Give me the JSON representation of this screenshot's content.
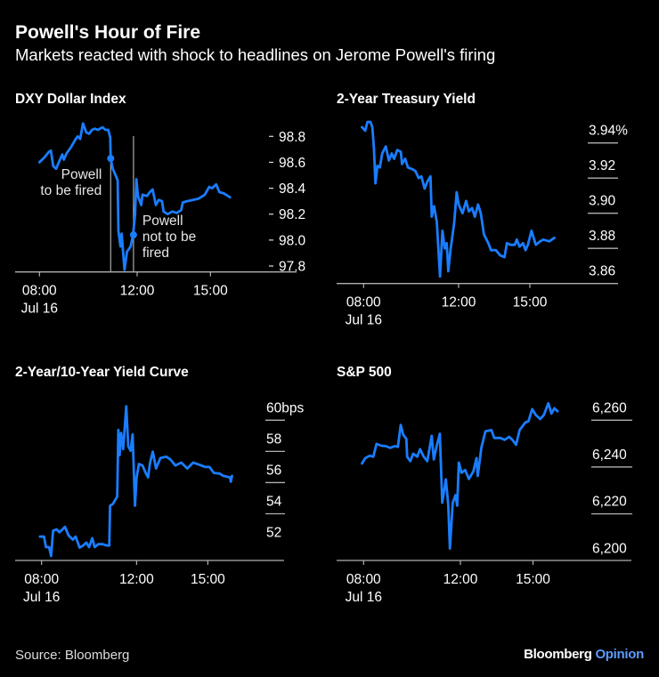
{
  "header": {
    "title": "Powell's Hour of Fire",
    "subtitle": "Markets reacted with shock to headlines on Jerome Powell's firing"
  },
  "footer": {
    "source": "Source: Bloomberg",
    "brand": "Bloomberg",
    "brand_suffix": "Opinion"
  },
  "colors": {
    "background": "#000000",
    "line": "#1a7dff",
    "text": "#ffffff",
    "grid": "#b0b0b0"
  },
  "chart_data": [
    {
      "type": "line",
      "title": "DXY Dollar Index",
      "ylim": [
        97.75,
        98.95
      ],
      "x_ticks": [
        "08:00",
        "12:00",
        "15:00"
      ],
      "x_sublabel": "Jul 16",
      "y_ticks": [
        {
          "value": 98.8,
          "label": "98.8"
        },
        {
          "value": 98.6,
          "label": "98.6"
        },
        {
          "value": 98.4,
          "label": "98.4"
        },
        {
          "value": 98.2,
          "label": "98.2"
        },
        {
          "value": 98.0,
          "label": "98.0"
        },
        {
          "value": 97.8,
          "label": "97.8"
        }
      ],
      "annotations": [
        {
          "x": "10:55",
          "y": 98.63,
          "lines": [
            "Powell",
            "to be fired"
          ]
        },
        {
          "x": "11:51",
          "y": 98.04,
          "lines": [
            "Powell",
            "not to be",
            "fired"
          ]
        }
      ],
      "points": [
        [
          "08:00",
          98.6
        ],
        [
          "08:13",
          98.64
        ],
        [
          "08:23",
          98.68
        ],
        [
          "08:28",
          98.69
        ],
        [
          "08:34",
          98.57
        ],
        [
          "08:41",
          98.55
        ],
        [
          "08:49",
          98.61
        ],
        [
          "08:56",
          98.66
        ],
        [
          "09:00",
          98.62
        ],
        [
          "09:07",
          98.67
        ],
        [
          "09:18",
          98.72
        ],
        [
          "09:29",
          98.78
        ],
        [
          "09:34",
          98.8
        ],
        [
          "09:40",
          98.78
        ],
        [
          "09:47",
          98.9
        ],
        [
          "09:55",
          98.83
        ],
        [
          "10:02",
          98.82
        ],
        [
          "10:09",
          98.85
        ],
        [
          "10:16",
          98.86
        ],
        [
          "10:23",
          98.85
        ],
        [
          "10:35",
          98.87
        ],
        [
          "10:42",
          98.85
        ],
        [
          "10:49",
          98.85
        ],
        [
          "10:54",
          98.79
        ],
        [
          "10:55",
          98.63
        ],
        [
          "11:00",
          98.55
        ],
        [
          "11:07",
          98.5
        ],
        [
          "11:12",
          98.46
        ],
        [
          "11:14",
          98.07
        ],
        [
          "11:19",
          97.95
        ],
        [
          "11:22",
          98.05
        ],
        [
          "11:29",
          97.77
        ],
        [
          "11:35",
          97.91
        ],
        [
          "11:44",
          97.95
        ],
        [
          "11:50",
          98.04
        ],
        [
          "11:55",
          98.2
        ],
        [
          "11:58",
          98.47
        ],
        [
          "12:02",
          98.34
        ],
        [
          "12:10",
          98.27
        ],
        [
          "12:13",
          98.35
        ],
        [
          "12:24",
          98.34
        ],
        [
          "12:31",
          98.37
        ],
        [
          "12:38",
          98.39
        ],
        [
          "12:46",
          98.27
        ],
        [
          "12:53",
          98.31
        ],
        [
          "13:01",
          98.3
        ],
        [
          "13:05",
          98.22
        ],
        [
          "13:15",
          98.2
        ],
        [
          "13:26",
          98.22
        ],
        [
          "13:37",
          98.21
        ],
        [
          "13:48",
          98.23
        ],
        [
          "13:52",
          98.29
        ],
        [
          "14:02",
          98.3
        ],
        [
          "14:17",
          98.31
        ],
        [
          "14:31",
          98.32
        ],
        [
          "14:46",
          98.35
        ],
        [
          "14:57",
          98.41
        ],
        [
          "15:04",
          98.4
        ],
        [
          "15:14",
          98.43
        ],
        [
          "15:22",
          98.37
        ],
        [
          "15:33",
          98.36
        ],
        [
          "15:48",
          98.33
        ]
      ]
    },
    {
      "type": "line",
      "title": "2-Year Treasury Yield",
      "ylim": [
        3.86,
        3.955
      ],
      "x_ticks": [
        "08:00",
        "12:00",
        "15:00"
      ],
      "x_sublabel": "Jul 16",
      "y_ticks": [
        {
          "value": 3.94,
          "label": "3.94%"
        },
        {
          "value": 3.92,
          "label": "3.92"
        },
        {
          "value": 3.9,
          "label": "3.90"
        },
        {
          "value": 3.88,
          "label": "3.88"
        },
        {
          "value": 3.86,
          "label": "3.86"
        }
      ],
      "points": [
        [
          "07:56",
          3.949
        ],
        [
          "08:04",
          3.947
        ],
        [
          "08:10",
          3.952
        ],
        [
          "08:17",
          3.952
        ],
        [
          "08:22",
          3.949
        ],
        [
          "08:26",
          3.937
        ],
        [
          "08:30",
          3.917
        ],
        [
          "08:35",
          3.927
        ],
        [
          "08:41",
          3.926
        ],
        [
          "08:47",
          3.934
        ],
        [
          "08:56",
          3.938
        ],
        [
          "09:04",
          3.93
        ],
        [
          "09:11",
          3.934
        ],
        [
          "09:17",
          3.931
        ],
        [
          "09:25",
          3.936
        ],
        [
          "09:34",
          3.935
        ],
        [
          "09:37",
          3.928
        ],
        [
          "09:45",
          3.931
        ],
        [
          "09:52",
          3.926
        ],
        [
          "10:04",
          3.925
        ],
        [
          "10:11",
          3.924
        ],
        [
          "10:19",
          3.92
        ],
        [
          "10:26",
          3.921
        ],
        [
          "10:34",
          3.914
        ],
        [
          "10:41",
          3.918
        ],
        [
          "10:49",
          3.921
        ],
        [
          "10:52",
          3.898
        ],
        [
          "10:58",
          3.904
        ],
        [
          "11:05",
          3.895
        ],
        [
          "11:13",
          3.864
        ],
        [
          "11:19",
          3.89
        ],
        [
          "11:25",
          3.88
        ],
        [
          "11:30",
          3.883
        ],
        [
          "11:34",
          3.867
        ],
        [
          "11:40",
          3.88
        ],
        [
          "11:45",
          3.888
        ],
        [
          "11:49",
          3.895
        ],
        [
          "11:55",
          3.912
        ],
        [
          "12:00",
          3.905
        ],
        [
          "12:10",
          3.9
        ],
        [
          "12:19",
          3.907
        ],
        [
          "12:26",
          3.901
        ],
        [
          "12:34",
          3.903
        ],
        [
          "12:41",
          3.898
        ],
        [
          "12:49",
          3.905
        ],
        [
          "12:56",
          3.9
        ],
        [
          "13:04",
          3.888
        ],
        [
          "13:15",
          3.883
        ],
        [
          "13:22",
          3.879
        ],
        [
          "13:34",
          3.879
        ],
        [
          "13:45",
          3.876
        ],
        [
          "13:56",
          3.875
        ],
        [
          "14:02",
          3.883
        ],
        [
          "14:11",
          3.882
        ],
        [
          "14:22",
          3.882
        ],
        [
          "14:27",
          3.885
        ],
        [
          "14:34",
          3.881
        ],
        [
          "14:43",
          3.883
        ],
        [
          "14:49",
          3.879
        ],
        [
          "14:55",
          3.882
        ],
        [
          "15:04",
          3.89
        ],
        [
          "15:15",
          3.882
        ],
        [
          "15:26",
          3.884
        ],
        [
          "15:34",
          3.885
        ],
        [
          "15:49",
          3.884
        ],
        [
          "16:02",
          3.886
        ]
      ]
    },
    {
      "type": "line",
      "title": "2-Year/10-Year Yield Curve",
      "ylim": [
        51,
        61
      ],
      "x_ticks": [
        "08:00",
        "12:00",
        "15:00"
      ],
      "x_sublabel": "Jul 16",
      "y_ticks": [
        {
          "value": 60,
          "label": "60bps"
        },
        {
          "value": 58,
          "label": "58"
        },
        {
          "value": 56,
          "label": "56"
        },
        {
          "value": 54,
          "label": "54"
        },
        {
          "value": 52,
          "label": "52"
        }
      ],
      "points": [
        [
          "07:56",
          52.53
        ],
        [
          "08:06",
          52.53
        ],
        [
          "08:11",
          51.86
        ],
        [
          "08:19",
          51.86
        ],
        [
          "08:24",
          51.29
        ],
        [
          "08:29",
          52.91
        ],
        [
          "08:38",
          53.0
        ],
        [
          "08:45",
          52.81
        ],
        [
          "08:53",
          53.0
        ],
        [
          "08:59",
          53.16
        ],
        [
          "09:08",
          52.62
        ],
        [
          "09:19",
          52.34
        ],
        [
          "09:26",
          52.53
        ],
        [
          "09:36",
          51.83
        ],
        [
          "09:45",
          51.96
        ],
        [
          "09:53",
          52.15
        ],
        [
          "10:00",
          51.86
        ],
        [
          "10:08",
          52.43
        ],
        [
          "10:14",
          51.86
        ],
        [
          "10:23",
          52.05
        ],
        [
          "10:34",
          52.05
        ],
        [
          "10:45",
          51.96
        ],
        [
          "10:51",
          51.96
        ],
        [
          "10:53",
          54.52
        ],
        [
          "11:00",
          54.62
        ],
        [
          "11:11",
          55.1
        ],
        [
          "11:14",
          59.37
        ],
        [
          "11:17",
          57.76
        ],
        [
          "11:21",
          59.18
        ],
        [
          "11:26",
          58.14
        ],
        [
          "11:34",
          60.89
        ],
        [
          "11:39",
          58.33
        ],
        [
          "11:45",
          58.04
        ],
        [
          "11:50",
          59.09
        ],
        [
          "11:56",
          54.52
        ],
        [
          "12:00",
          56.33
        ],
        [
          "12:06",
          57.19
        ],
        [
          "12:15",
          57.09
        ],
        [
          "12:23",
          56.62
        ],
        [
          "12:29",
          56.33
        ],
        [
          "12:34",
          57.28
        ],
        [
          "12:41",
          57.98
        ],
        [
          "12:49",
          56.9
        ],
        [
          "13:00",
          57.57
        ],
        [
          "13:15",
          57.66
        ],
        [
          "13:26",
          57.47
        ],
        [
          "13:38",
          57.09
        ],
        [
          "13:53",
          57.28
        ],
        [
          "14:08",
          56.9
        ],
        [
          "14:23",
          57.28
        ],
        [
          "14:38",
          57.15
        ],
        [
          "14:53",
          57.0
        ],
        [
          "15:04",
          57.0
        ],
        [
          "15:15",
          56.62
        ],
        [
          "15:30",
          56.58
        ],
        [
          "15:39",
          56.43
        ],
        [
          "15:56",
          56.33
        ],
        [
          "15:58",
          56.05
        ],
        [
          "16:01",
          56.43
        ]
      ]
    },
    {
      "type": "line",
      "title": "S&P 500",
      "ylim": [
        6200,
        6268
      ],
      "x_ticks": [
        "08:00",
        "12:00",
        "15:00"
      ],
      "x_sublabel": "Jul 16",
      "y_ticks": [
        {
          "value": 6260,
          "label": "6,260"
        },
        {
          "value": 6240,
          "label": "6,240"
        },
        {
          "value": 6220,
          "label": "6,220"
        },
        {
          "value": 6200,
          "label": "6,200"
        }
      ],
      "points": [
        [
          "07:56",
          6241.5
        ],
        [
          "08:04",
          6243.8
        ],
        [
          "08:15",
          6244.8
        ],
        [
          "08:24",
          6244.4
        ],
        [
          "08:32",
          6249.9
        ],
        [
          "08:44",
          6249.1
        ],
        [
          "08:55",
          6248.9
        ],
        [
          "09:06",
          6248.2
        ],
        [
          "09:17",
          6248.9
        ],
        [
          "09:25",
          6248.6
        ],
        [
          "09:32",
          6258.0
        ],
        [
          "09:38",
          6253.9
        ],
        [
          "09:46",
          6252.0
        ],
        [
          "09:48",
          6244.4
        ],
        [
          "09:56",
          6242.5
        ],
        [
          "10:03",
          6245.7
        ],
        [
          "10:13",
          6244.4
        ],
        [
          "10:20",
          6247.6
        ],
        [
          "10:29",
          6244.4
        ],
        [
          "10:38",
          6242.5
        ],
        [
          "10:49",
          6253.3
        ],
        [
          "10:54",
          6243.2
        ],
        [
          "11:01",
          6248.9
        ],
        [
          "11:09",
          6254.2
        ],
        [
          "11:15",
          6224.8
        ],
        [
          "11:24",
          6234.7
        ],
        [
          "11:30",
          6223.5
        ],
        [
          "11:34",
          6205.2
        ],
        [
          "11:41",
          6224.8
        ],
        [
          "11:48",
          6228.0
        ],
        [
          "11:52",
          6223.5
        ],
        [
          "11:56",
          6241.9
        ],
        [
          "12:03",
          6237.5
        ],
        [
          "12:12",
          6238.7
        ],
        [
          "12:21",
          6234.9
        ],
        [
          "12:32",
          6238.1
        ],
        [
          "12:40",
          6243.8
        ],
        [
          "12:43",
          6236.2
        ],
        [
          "12:52",
          6248.2
        ],
        [
          "13:02",
          6255.2
        ],
        [
          "13:17",
          6255.8
        ],
        [
          "13:24",
          6252.4
        ],
        [
          "13:39",
          6252.4
        ],
        [
          "13:50",
          6251.6
        ],
        [
          "14:01",
          6252.9
        ],
        [
          "14:10",
          6251.4
        ],
        [
          "14:18",
          6249.5
        ],
        [
          "14:27",
          6255.8
        ],
        [
          "14:41",
          6259.0
        ],
        [
          "14:49",
          6259.6
        ],
        [
          "14:58",
          6264.7
        ],
        [
          "15:07",
          6262.2
        ],
        [
          "15:18",
          6260.5
        ],
        [
          "15:27",
          6262.2
        ],
        [
          "15:38",
          6267.2
        ],
        [
          "15:46",
          6262.8
        ],
        [
          "15:53",
          6265.1
        ],
        [
          "16:01",
          6263.8
        ]
      ]
    }
  ]
}
